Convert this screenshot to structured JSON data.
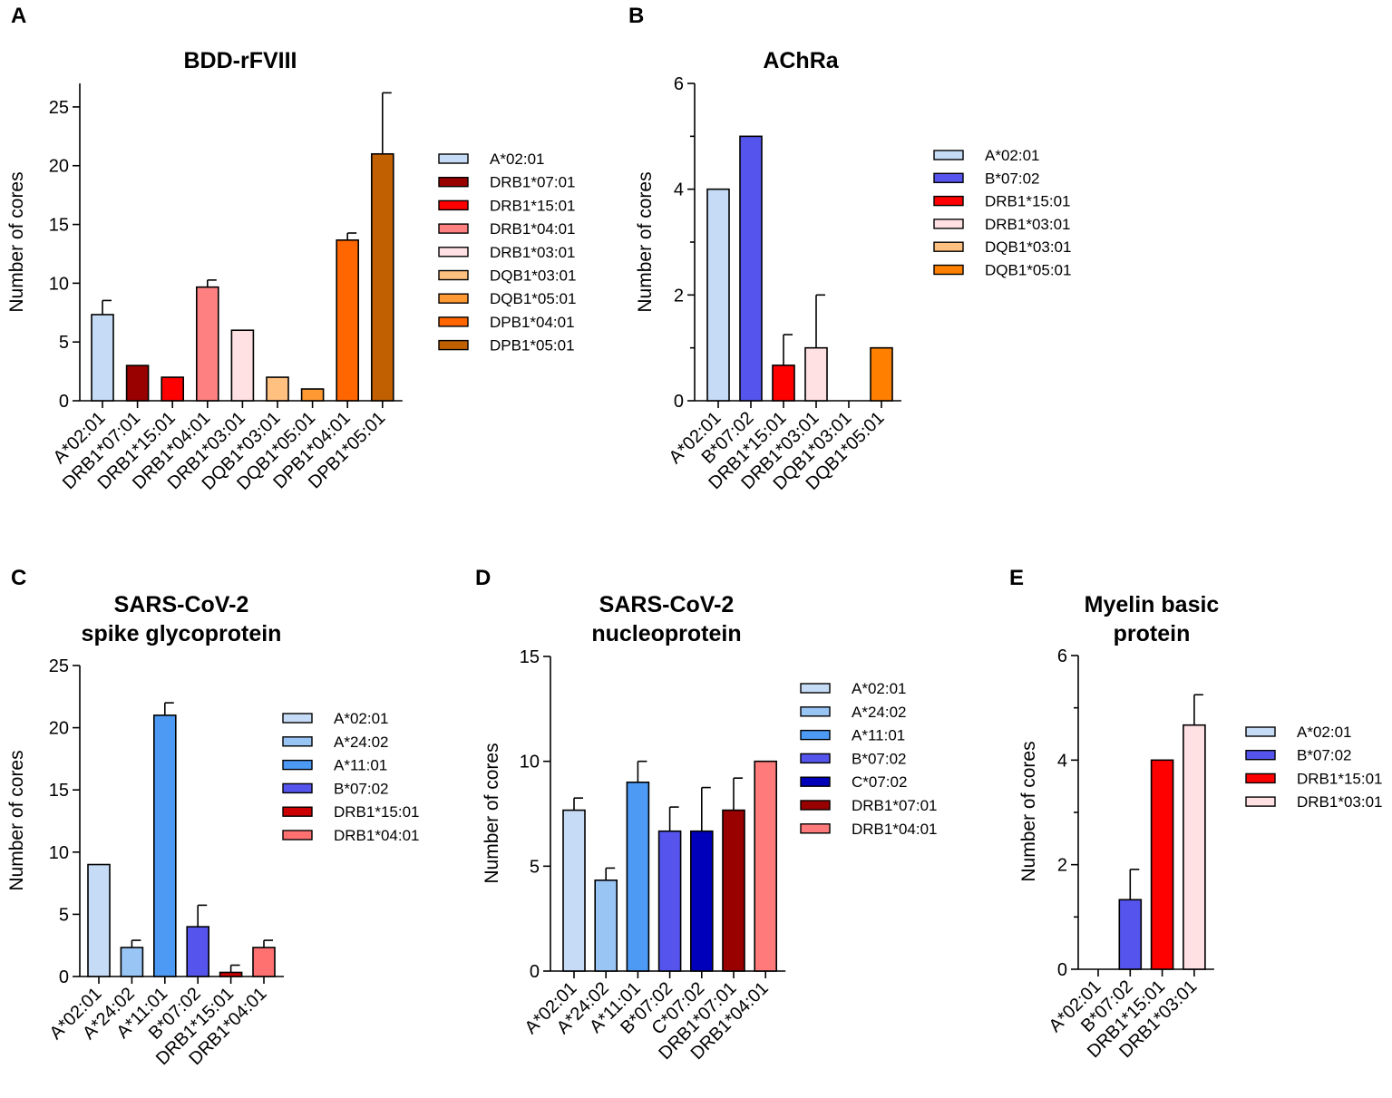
{
  "chart_data": [
    {
      "panel": "A",
      "type": "bar",
      "title": [
        "BDD-rFVIII"
      ],
      "ylabel": "Number of cores",
      "xlabel": "",
      "ylim": [
        0,
        27
      ],
      "yticks": [
        0,
        5,
        10,
        15,
        20,
        25
      ],
      "categories": [
        "A*02:01",
        "DRB1*07:01",
        "DRB1*15:01",
        "DRB1*04:01",
        "DRB1*03:01",
        "DQB1*03:01",
        "DQB1*05:01",
        "DPB1*04:01",
        "DPB1*05:01"
      ],
      "values": [
        7.33,
        3,
        2,
        9.67,
        6,
        2,
        1,
        13.67,
        21
      ],
      "errors": [
        1.2,
        0,
        0,
        0.6,
        0,
        0,
        0,
        0.6,
        5.2
      ],
      "colors": [
        "#c6dbf5",
        "#990000",
        "#ff0000",
        "#ff8080",
        "#ffe0e3",
        "#ffc080",
        "#ff9933",
        "#ff6600",
        "#c06000"
      ],
      "legend": [
        "A*02:01",
        "DRB1*07:01",
        "DRB1*15:01",
        "DRB1*04:01",
        "DRB1*03:01",
        "DQB1*03:01",
        "DQB1*05:01",
        "DPB1*04:01",
        "DPB1*05:01"
      ],
      "legend_position": "right"
    },
    {
      "panel": "B",
      "type": "bar",
      "title": [
        "AChRa"
      ],
      "ylabel": "Number of cores",
      "xlabel": "",
      "ylim": [
        0,
        6
      ],
      "yticks": [
        0,
        2,
        4,
        6
      ],
      "categories": [
        "A*02:01",
        "B*07:02",
        "DRB1*15:01",
        "DRB1*03:01",
        "DQB1*03:01",
        "DQB1*05:01"
      ],
      "values": [
        4,
        5,
        0.67,
        1,
        0,
        1
      ],
      "errors": [
        0,
        0,
        0.58,
        1,
        0,
        0
      ],
      "colors": [
        "#c6dbf5",
        "#5555ee",
        "#ff0000",
        "#ffe0e3",
        "#ffc080",
        "#ff8000"
      ],
      "legend": [
        "A*02:01",
        "B*07:02",
        "DRB1*15:01",
        "DRB1*03:01",
        "DQB1*03:01",
        "DQB1*05:01"
      ],
      "legend_position": "right"
    },
    {
      "panel": "C",
      "type": "bar",
      "title": [
        "SARS-CoV-2",
        "spike glycoprotein"
      ],
      "ylabel": "Number of cores",
      "xlabel": "",
      "ylim": [
        0,
        25
      ],
      "yticks": [
        0,
        5,
        10,
        15,
        20,
        25
      ],
      "categories": [
        "A*02:01",
        "A*24:02",
        "A*11:01",
        "B*07:02",
        "DRB1*15:01",
        "DRB1*04:01"
      ],
      "values": [
        9,
        2.33,
        21,
        4,
        0.33,
        2.33
      ],
      "errors": [
        0,
        0.58,
        1,
        1.73,
        0.58,
        0.58
      ],
      "colors": [
        "#c6dbf5",
        "#99c5f5",
        "#4d9af5",
        "#5555ee",
        "#cc0000",
        "#ff7070"
      ],
      "legend": [
        "A*02:01",
        "A*24:02",
        "A*11:01",
        "B*07:02",
        "DRB1*15:01",
        "DRB1*04:01"
      ],
      "legend_position": "right"
    },
    {
      "panel": "D",
      "type": "bar",
      "title": [
        "SARS-CoV-2",
        "nucleoprotein"
      ],
      "ylabel": "Number of cores",
      "xlabel": "",
      "ylim": [
        0,
        15
      ],
      "yticks": [
        0,
        5,
        10,
        15
      ],
      "categories": [
        "A*02:01",
        "A*24:02",
        "A*11:01",
        "B*07:02",
        "C*07:02",
        "DRB1*07:01",
        "DRB1*04:01"
      ],
      "values": [
        7.67,
        4.33,
        9,
        6.67,
        6.67,
        7.67,
        10
      ],
      "errors": [
        0.58,
        0.58,
        1,
        1.15,
        2.08,
        1.53,
        0
      ],
      "colors": [
        "#c6dbf5",
        "#99c5f5",
        "#4d9af5",
        "#5555ee",
        "#0000bb",
        "#990000",
        "#ff7b7b"
      ],
      "legend": [
        "A*02:01",
        "A*24:02",
        "A*11:01",
        "B*07:02",
        "C*07:02",
        "DRB1*07:01",
        "DRB1*04:01"
      ],
      "legend_position": "right"
    },
    {
      "panel": "E",
      "type": "bar",
      "title": [
        "Myelin basic",
        "protein"
      ],
      "ylabel": "Number of cores",
      "xlabel": "",
      "ylim": [
        0,
        6
      ],
      "yticks": [
        0,
        2,
        4,
        6
      ],
      "categories": [
        "A*02:01",
        "B*07:02",
        "DRB1*15:01",
        "DRB1*03:01"
      ],
      "values": [
        0,
        1.33,
        4,
        4.67
      ],
      "errors": [
        0,
        0.58,
        0,
        0.58
      ],
      "colors": [
        "#c6dbf5",
        "#5555ee",
        "#ff0000",
        "#ffe0e3"
      ],
      "legend": [
        "A*02:01",
        "B*07:02",
        "DRB1*15:01",
        "DRB1*03:01"
      ],
      "legend_position": "right"
    }
  ]
}
